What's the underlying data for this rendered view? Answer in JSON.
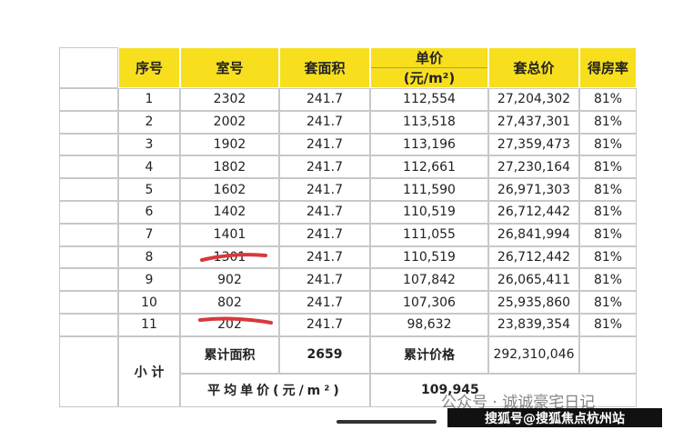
{
  "table": {
    "header": [
      "序号",
      "室号",
      "套面积",
      "单价",
      "套总价",
      "得房率"
    ],
    "unit_price_unit": "(元/m²)",
    "rows": [
      [
        "1",
        "2302",
        "241.7",
        "112,554",
        "27,204,302",
        "81%"
      ],
      [
        "2",
        "2002",
        "241.7",
        "113,518",
        "27,437,301",
        "81%"
      ],
      [
        "3",
        "1902",
        "241.7",
        "113,196",
        "27,359,473",
        "81%"
      ],
      [
        "4",
        "1802",
        "241.7",
        "112,661",
        "27,230,164",
        "81%"
      ],
      [
        "5",
        "1602",
        "241.7",
        "111,590",
        "26,971,303",
        "81%"
      ],
      [
        "6",
        "1402",
        "241.7",
        "110,519",
        "26,712,442",
        "81%"
      ],
      [
        "7",
        "1401",
        "241.7",
        "111,055",
        "26,841,994",
        "81%"
      ],
      [
        "8",
        "1301",
        "241.7",
        "110,519",
        "26,712,442",
        "81%"
      ],
      [
        "9",
        "902",
        "241.7",
        "107,842",
        "26,065,411",
        "81%"
      ],
      [
        "10",
        "802",
        "241.7",
        "107,306",
        "25,935,860",
        "81%"
      ],
      [
        "11",
        "202",
        "241.7",
        "98,632",
        "23,839,354",
        "81%"
      ]
    ],
    "summary": {
      "label": "小 计",
      "total_area_label": "累计面积",
      "total_area": "2659",
      "total_price_label": "累计价格",
      "total_price": "292,310,046",
      "avg_price_label": "平均单价(元/m²)",
      "avg_price": "109,945"
    }
  },
  "watermarks": [
    "公众号 · 诚诚豪宅日记",
    "搜狐号@搜狐焦点杭州站"
  ]
}
